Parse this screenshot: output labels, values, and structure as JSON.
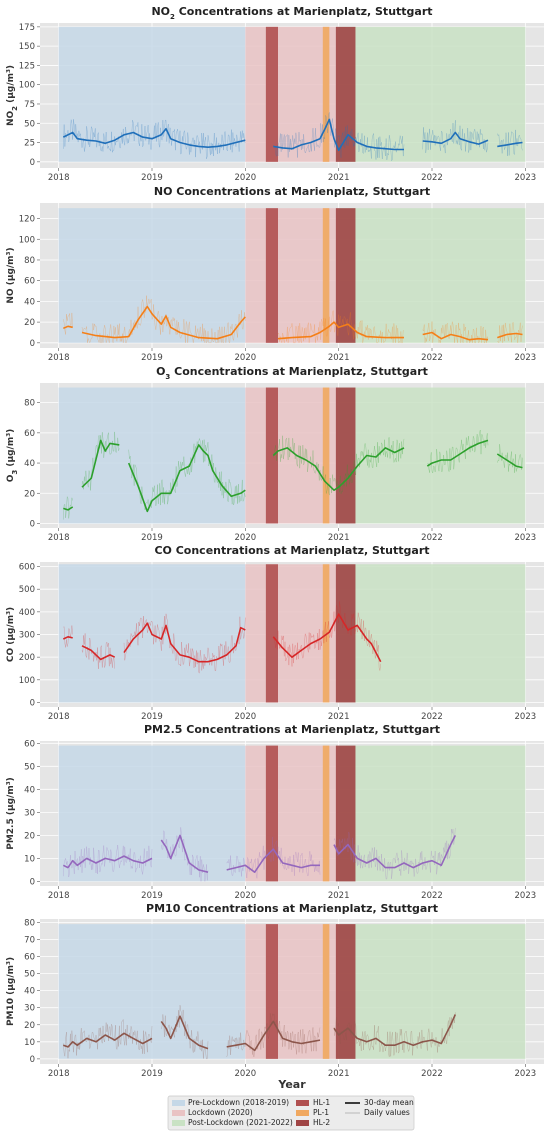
{
  "colors": {
    "pre": "#c5d8e7",
    "lockdown": "#e9c3c4",
    "post": "#c9e2c4",
    "hl1": "#b05050",
    "pl1": "#f0a860",
    "hl2": "#a04545"
  },
  "chart_data": [
    {
      "type": "line",
      "title_main": "NO",
      "title_sub": "2",
      "title_rest": " Concentrations at Marienplatz, Stuttgart",
      "ylabel_main": "NO",
      "ylabel_sub": "2",
      "ylabel_rest": " (µg/m³)",
      "ylim": [
        -8,
        180
      ],
      "yticks": [
        0,
        25,
        50,
        75,
        100,
        125,
        150,
        175
      ],
      "band_top": 175,
      "color": "#1f6fba",
      "series": [
        {
          "name": "30-day mean",
          "x": [
            2018.05,
            2018.1,
            2018.15,
            2018.2,
            2018.3,
            2018.4,
            2018.5,
            2018.6,
            2018.7,
            2018.8,
            2018.9,
            2019.0,
            2019.1,
            2019.15,
            2019.2,
            2019.3,
            2019.4,
            2019.5,
            2019.6,
            2019.7,
            2019.8,
            2019.9,
            2020.0
          ],
          "values": [
            32,
            35,
            38,
            30,
            28,
            27,
            24,
            28,
            35,
            38,
            32,
            30,
            35,
            43,
            30,
            25,
            22,
            20,
            19,
            20,
            22,
            25,
            28
          ]
        },
        {
          "name": "30-day mean",
          "x": [
            2020.3,
            2020.4,
            2020.5,
            2020.6,
            2020.7,
            2020.8,
            2020.85,
            2020.9,
            2020.95,
            2021.0,
            2021.05,
            2021.1,
            2021.2,
            2021.3,
            2021.4,
            2021.5,
            2021.6,
            2021.7
          ],
          "values": [
            20,
            18,
            17,
            22,
            25,
            30,
            42,
            55,
            30,
            15,
            25,
            35,
            25,
            20,
            18,
            17,
            16,
            16
          ]
        },
        {
          "name": "30-day mean",
          "x": [
            2021.9,
            2022.0,
            2022.1,
            2022.2,
            2022.25,
            2022.3,
            2022.4,
            2022.5,
            2022.6
          ],
          "values": [
            27,
            26,
            24,
            30,
            38,
            30,
            26,
            23,
            28
          ]
        },
        {
          "name": "30-day mean",
          "x": [
            2022.7,
            2022.8,
            2022.9,
            2022.97
          ],
          "values": [
            20,
            22,
            24,
            25
          ]
        }
      ]
    },
    {
      "type": "line",
      "title_main": "NO Concentrations at Marienplatz, Stuttgart",
      "title_sub": "",
      "title_rest": "",
      "ylabel_main": "NO (µg/m³)",
      "ylabel_sub": "",
      "ylabel_rest": "",
      "ylim": [
        -5,
        135
      ],
      "yticks": [
        0,
        20,
        40,
        60,
        80,
        100,
        120
      ],
      "band_top": 130,
      "color": "#f57f17",
      "series": [
        {
          "name": "30-day mean",
          "x": [
            2018.05,
            2018.1,
            2018.15
          ],
          "values": [
            14,
            16,
            15
          ]
        },
        {
          "name": "30-day mean",
          "x": [
            2018.25,
            2018.4,
            2018.6,
            2018.75,
            2018.85,
            2018.95,
            2019.0,
            2019.1,
            2019.15,
            2019.2,
            2019.3,
            2019.5,
            2019.7,
            2019.85,
            2019.95,
            2020.0
          ],
          "values": [
            10,
            7,
            5,
            6,
            22,
            35,
            28,
            18,
            26,
            15,
            10,
            5,
            4,
            8,
            20,
            25
          ]
        },
        {
          "name": "30-day mean",
          "x": [
            2020.35,
            2020.5,
            2020.7,
            2020.8,
            2020.9,
            2020.95,
            2021.0,
            2021.1,
            2021.2,
            2021.3,
            2021.5,
            2021.7
          ],
          "values": [
            4,
            5,
            6,
            10,
            16,
            20,
            15,
            18,
            10,
            6,
            5,
            5
          ]
        },
        {
          "name": "30-day mean",
          "x": [
            2021.9,
            2022.0,
            2022.1,
            2022.2,
            2022.3,
            2022.4,
            2022.5,
            2022.6
          ],
          "values": [
            8,
            10,
            4,
            8,
            6,
            3,
            4,
            3
          ]
        },
        {
          "name": "30-day mean",
          "x": [
            2022.7,
            2022.8,
            2022.9,
            2022.97
          ],
          "values": [
            5,
            8,
            9,
            8
          ]
        }
      ]
    },
    {
      "type": "line",
      "title_main": "O",
      "title_sub": "3",
      "title_rest": " Concentrations at Marienplatz, Stuttgart",
      "ylabel_main": "O",
      "ylabel_sub": "3",
      "ylabel_rest": " (µg/m³)",
      "ylim": [
        -3,
        93
      ],
      "yticks": [
        0,
        20,
        40,
        60,
        80
      ],
      "band_top": 90,
      "color": "#2ca02c",
      "series": [
        {
          "name": "30-day mean",
          "x": [
            2018.05,
            2018.1,
            2018.15
          ],
          "values": [
            10,
            9,
            11
          ]
        },
        {
          "name": "30-day mean",
          "x": [
            2018.25,
            2018.35,
            2018.45,
            2018.5,
            2018.55,
            2018.65
          ],
          "values": [
            24,
            30,
            55,
            48,
            53,
            52
          ]
        },
        {
          "name": "30-day mean",
          "x": [
            2018.75,
            2018.85,
            2018.95,
            2019.0,
            2019.1,
            2019.2,
            2019.3,
            2019.4,
            2019.5,
            2019.55,
            2019.6,
            2019.65,
            2019.75,
            2019.85,
            2019.95,
            2020.0
          ],
          "values": [
            40,
            25,
            8,
            15,
            20,
            20,
            35,
            38,
            52,
            48,
            45,
            35,
            25,
            18,
            20,
            22
          ]
        },
        {
          "name": "30-day mean",
          "x": [
            2020.3,
            2020.35,
            2020.45,
            2020.55,
            2020.65,
            2020.75,
            2020.85,
            2020.95,
            2021.0,
            2021.1,
            2021.2,
            2021.3,
            2021.4,
            2021.5,
            2021.6,
            2021.7
          ],
          "values": [
            45,
            48,
            50,
            45,
            42,
            38,
            28,
            22,
            24,
            30,
            38,
            45,
            44,
            50,
            47,
            50
          ]
        },
        {
          "name": "30-day mean",
          "x": [
            2021.95,
            2022.0,
            2022.1,
            2022.2,
            2022.3,
            2022.4,
            2022.5,
            2022.6
          ],
          "values": [
            38,
            40,
            42,
            42,
            46,
            50,
            53,
            55
          ]
        },
        {
          "name": "30-day mean",
          "x": [
            2022.7,
            2022.8,
            2022.9,
            2022.97
          ],
          "values": [
            46,
            42,
            38,
            37
          ]
        }
      ]
    },
    {
      "type": "line",
      "title_main": "CO Concentrations at Marienplatz, Stuttgart",
      "title_sub": "",
      "title_rest": "",
      "ylabel_main": "CO (µg/m³)",
      "ylabel_sub": "",
      "ylabel_rest": "",
      "ylim": [
        -20,
        620
      ],
      "yticks": [
        0,
        100,
        200,
        300,
        400,
        500,
        600
      ],
      "band_top": 610,
      "color": "#d62728",
      "series": [
        {
          "name": "30-day mean",
          "x": [
            2018.05,
            2018.1,
            2018.15
          ],
          "values": [
            280,
            290,
            285
          ]
        },
        {
          "name": "30-day mean",
          "x": [
            2018.25,
            2018.35,
            2018.45,
            2018.55,
            2018.6
          ],
          "values": [
            250,
            230,
            190,
            210,
            200
          ]
        },
        {
          "name": "30-day mean",
          "x": [
            2018.7,
            2018.8,
            2018.9,
            2018.95,
            2019.0,
            2019.1,
            2019.15,
            2019.2,
            2019.3,
            2019.4,
            2019.5,
            2019.6,
            2019.7,
            2019.8,
            2019.9,
            2019.95,
            2020.0
          ],
          "values": [
            220,
            280,
            320,
            350,
            300,
            280,
            340,
            260,
            210,
            200,
            180,
            180,
            190,
            210,
            250,
            330,
            320
          ]
        },
        {
          "name": "30-day mean",
          "x": [
            2020.3,
            2020.4,
            2020.5,
            2020.6,
            2020.7,
            2020.8,
            2020.9,
            2020.95,
            2021.0,
            2021.1,
            2021.2,
            2021.3,
            2021.35,
            2021.45
          ],
          "values": [
            290,
            240,
            200,
            230,
            260,
            280,
            310,
            350,
            390,
            320,
            340,
            280,
            260,
            180
          ]
        }
      ]
    },
    {
      "type": "line",
      "title_main": "PM2.5 Concentrations at Marienplatz, Stuttgart",
      "title_sub": "",
      "title_rest": "",
      "ylabel_main": "PM2.5 (µg/m³)",
      "ylabel_sub": "",
      "ylabel_rest": "",
      "ylim": [
        -2,
        61
      ],
      "yticks": [
        0,
        10,
        20,
        30,
        40,
        50,
        60
      ],
      "band_top": 59,
      "color": "#9467bd",
      "series": [
        {
          "name": "30-day mean",
          "x": [
            2018.05,
            2018.1,
            2018.15,
            2018.2,
            2018.3,
            2018.4,
            2018.5,
            2018.6,
            2018.7,
            2018.8,
            2018.9,
            2019.0
          ],
          "values": [
            7,
            6,
            9,
            7,
            10,
            8,
            10,
            9,
            11,
            9,
            8,
            10
          ]
        },
        {
          "name": "30-day mean",
          "x": [
            2019.1,
            2019.15,
            2019.2,
            2019.3,
            2019.4,
            2019.5,
            2019.6
          ],
          "values": [
            18,
            15,
            10,
            20,
            8,
            5,
            4
          ]
        },
        {
          "name": "30-day mean",
          "x": [
            2019.8,
            2019.9,
            2020.0,
            2020.1,
            2020.2,
            2020.3,
            2020.4,
            2020.5,
            2020.6,
            2020.7,
            2020.8
          ],
          "values": [
            5,
            6,
            7,
            4,
            10,
            14,
            8,
            7,
            6,
            7,
            7
          ]
        },
        {
          "name": "30-day mean",
          "x": [
            2020.95,
            2021.0,
            2021.1,
            2021.2,
            2021.3,
            2021.4,
            2021.5,
            2021.6,
            2021.7,
            2021.8,
            2021.9,
            2022.0,
            2022.1,
            2022.2,
            2022.25
          ],
          "values": [
            16,
            12,
            16,
            10,
            8,
            10,
            6,
            6,
            8,
            6,
            8,
            9,
            7,
            16,
            20
          ]
        }
      ]
    },
    {
      "type": "line",
      "title_main": "PM10 Concentrations at Marienplatz, Stuttgart",
      "title_sub": "",
      "title_rest": "",
      "ylabel_main": "PM10 (µg/m³)",
      "ylabel_sub": "",
      "ylabel_rest": "",
      "ylim": [
        -3,
        82
      ],
      "yticks": [
        0,
        10,
        20,
        30,
        40,
        50,
        60,
        70,
        80
      ],
      "band_top": 79,
      "color": "#8c564b",
      "series": [
        {
          "name": "30-day mean",
          "x": [
            2018.05,
            2018.1,
            2018.15,
            2018.2,
            2018.3,
            2018.4,
            2018.5,
            2018.6,
            2018.7,
            2018.8,
            2018.9,
            2019.0
          ],
          "values": [
            8,
            7,
            10,
            8,
            12,
            10,
            14,
            11,
            15,
            12,
            9,
            12
          ]
        },
        {
          "name": "30-day mean",
          "x": [
            2019.1,
            2019.15,
            2019.2,
            2019.3,
            2019.4,
            2019.5,
            2019.6
          ],
          "values": [
            22,
            18,
            12,
            25,
            12,
            8,
            6
          ]
        },
        {
          "name": "30-day mean",
          "x": [
            2019.8,
            2019.9,
            2020.0,
            2020.1,
            2020.2,
            2020.3,
            2020.4,
            2020.5,
            2020.6,
            2020.7,
            2020.8
          ],
          "values": [
            7,
            8,
            9,
            5,
            14,
            22,
            12,
            10,
            9,
            10,
            11
          ]
        },
        {
          "name": "30-day mean",
          "x": [
            2020.95,
            2021.0,
            2021.1,
            2021.2,
            2021.3,
            2021.4,
            2021.5,
            2021.6,
            2021.7,
            2021.8,
            2021.9,
            2022.0,
            2022.1,
            2022.2,
            2022.25
          ],
          "values": [
            18,
            14,
            18,
            12,
            10,
            12,
            8,
            8,
            10,
            8,
            10,
            11,
            9,
            20,
            26
          ]
        }
      ]
    }
  ],
  "periods": [
    {
      "label": "Pre-Lockdown (2018-2019)",
      "start": 2018.0,
      "end": 2020.0,
      "color_key": "pre"
    },
    {
      "label": "Lockdown (2020)",
      "start": 2020.0,
      "end": 2021.0,
      "color_key": "lockdown"
    },
    {
      "label": "Post-Lockdown (2021-2022)",
      "start": 2021.0,
      "end": 2023.0,
      "color_key": "post"
    }
  ],
  "phases": [
    {
      "label": "HL-1",
      "start": 2020.22,
      "end": 2020.35,
      "color_key": "hl1"
    },
    {
      "label": "PL-1",
      "start": 2020.83,
      "end": 2020.9,
      "color_key": "pl1"
    },
    {
      "label": "HL-2",
      "start": 2020.97,
      "end": 2021.18,
      "color_key": "hl2"
    }
  ],
  "x_ticks": [
    "2018",
    "2019",
    "2020",
    "2021",
    "2022",
    "2023"
  ],
  "xlabel": "Year",
  "legend": {
    "col1": [
      "Pre-Lockdown (2018-2019)",
      "Lockdown (2020)",
      "Post-Lockdown (2021-2022)"
    ],
    "col2": [
      "HL-1",
      "PL-1",
      "HL-2"
    ],
    "col3": [
      "30-day mean",
      "Daily values"
    ]
  }
}
